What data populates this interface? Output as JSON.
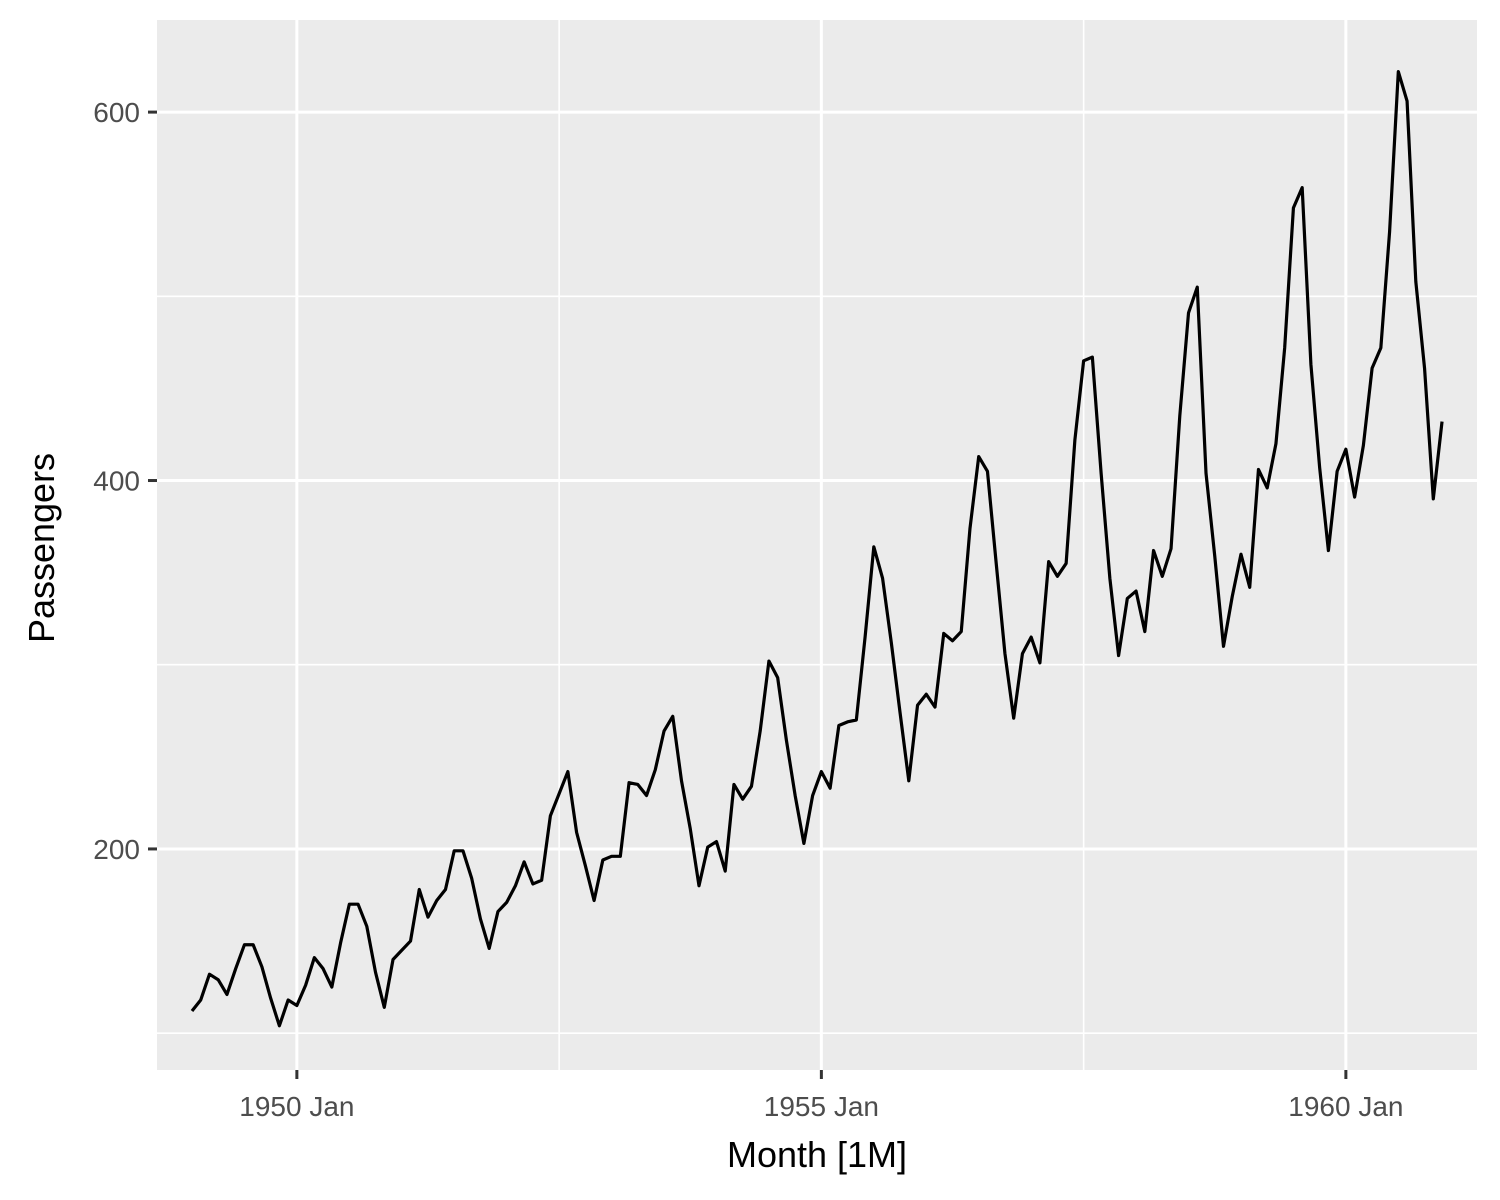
{
  "chart_data": {
    "type": "line",
    "title": "",
    "xlabel": "Month [1M]",
    "ylabel": "Passengers",
    "xlim": [
      "1948-09",
      "1961-04"
    ],
    "ylim": [
      80,
      650
    ],
    "x_ticks": [
      {
        "date": "1950-01",
        "label": "1950 Jan"
      },
      {
        "date": "1955-01",
        "label": "1955 Jan"
      },
      {
        "date": "1960-01",
        "label": "1960 Jan"
      }
    ],
    "x_minor_grid": [
      "1952-07",
      "1957-07"
    ],
    "y_ticks": [
      200,
      400,
      600
    ],
    "y_minor_grid": [
      100,
      300,
      500
    ],
    "grid": true,
    "legend": "none",
    "colors": {
      "panel": "#EBEBEB",
      "grid": "#FFFFFF",
      "line": "#000000",
      "tick": "#333333"
    },
    "series": [
      {
        "x_start": "1949-01",
        "frequency": "monthly",
        "values": [
          112,
          118,
          132,
          129,
          121,
          135,
          148,
          148,
          136,
          119,
          104,
          118,
          115,
          126,
          141,
          135,
          125,
          149,
          170,
          170,
          158,
          133,
          114,
          140,
          145,
          150,
          178,
          163,
          172,
          178,
          199,
          199,
          184,
          162,
          146,
          166,
          171,
          180,
          193,
          181,
          183,
          218,
          230,
          242,
          209,
          191,
          172,
          194,
          196,
          196,
          236,
          235,
          229,
          243,
          264,
          272,
          237,
          211,
          180,
          201,
          204,
          188,
          235,
          227,
          234,
          264,
          302,
          293,
          259,
          229,
          203,
          229,
          242,
          233,
          267,
          269,
          270,
          315,
          364,
          347,
          312,
          274,
          237,
          278,
          284,
          277,
          317,
          313,
          318,
          374,
          413,
          405,
          355,
          306,
          271,
          306,
          315,
          301,
          356,
          348,
          355,
          422,
          465,
          467,
          404,
          347,
          305,
          336,
          340,
          318,
          362,
          348,
          363,
          435,
          491,
          505,
          404,
          359,
          310,
          337,
          360,
          342,
          406,
          396,
          420,
          472,
          548,
          559,
          463,
          407,
          362,
          405,
          417,
          391,
          419,
          461,
          472,
          535,
          622,
          606,
          508,
          461,
          390,
          432
        ]
      }
    ]
  }
}
